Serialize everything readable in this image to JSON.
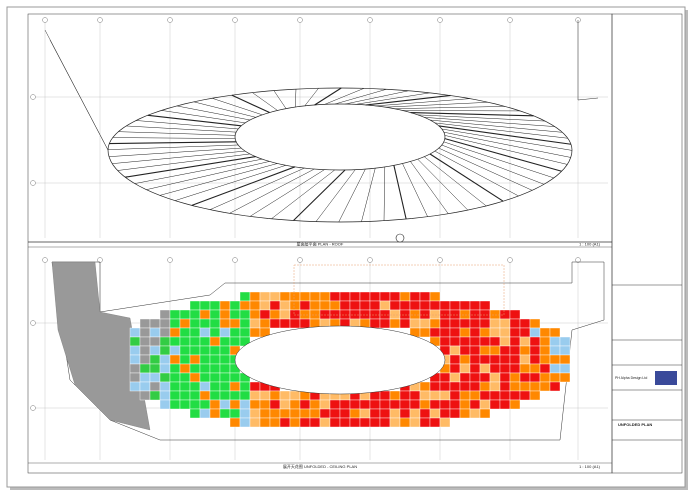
{
  "drawing": {
    "top_plan": {
      "title": "屋面层平面 PLAN - ROOF",
      "scale": "1 : 100 (A1)"
    },
    "bottom_plan": {
      "title": "展开天花图 UNFOLDED - CEILING PLAN",
      "scale": "1 : 100 (A1)"
    },
    "title_block": {
      "company": "PH Alpha Design Ltd",
      "drawing_title": "UNFOLDED PLAN"
    }
  }
}
